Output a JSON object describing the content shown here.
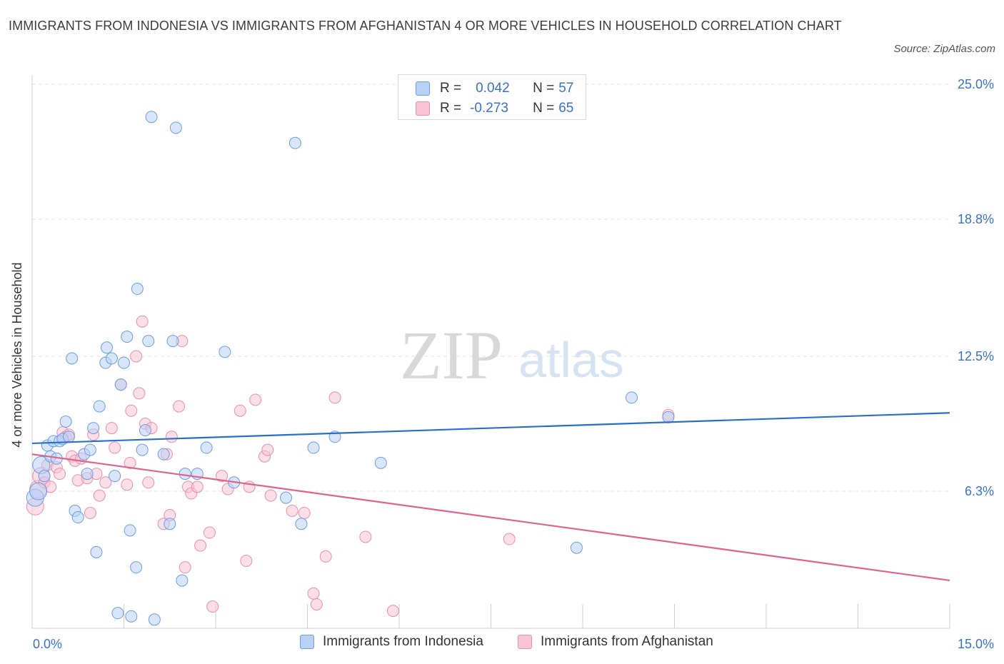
{
  "title": "IMMIGRANTS FROM INDONESIA VS IMMIGRANTS FROM AFGHANISTAN 4 OR MORE VEHICLES IN HOUSEHOLD CORRELATION CHART",
  "source": "Source: ZipAtlas.com",
  "watermark": {
    "zip": "ZIP",
    "atlas": "atlas"
  },
  "legend": {
    "r_label": "R =",
    "n_label": "N =",
    "series1": {
      "r": "0.042",
      "n": "57"
    },
    "series2": {
      "r": "-0.273",
      "n": "65"
    }
  },
  "colors": {
    "indonesia_fill": "#b9d1f5",
    "indonesia_stroke": "#6d9de0",
    "indonesia_line": "#2a6fca",
    "afghanistan_fill": "#f8c4d6",
    "afghanistan_stroke": "#e98eac",
    "afghanistan_line": "#e0628f",
    "axis_text": "#3a72c9"
  },
  "chart_data": {
    "type": "scatter",
    "title": "IMMIGRANTS FROM INDONESIA VS IMMIGRANTS FROM AFGHANISTAN 4 OR MORE VEHICLES IN HOUSEHOLD CORRELATION CHART",
    "xlabel": "",
    "ylabel": "4 or more Vehicles in Household",
    "xlim": [
      0,
      15
    ],
    "ylim": [
      0,
      25
    ],
    "x_tick_labels": [
      "0.0%",
      "15.0%"
    ],
    "y_ticks": [
      6.3,
      12.5,
      18.8,
      25.0
    ],
    "y_tick_labels": [
      "6.3%",
      "12.5%",
      "18.8%",
      "25.0%"
    ],
    "grid": true,
    "legend_position": "top-center",
    "series": [
      {
        "name": "Immigrants from Indonesia",
        "r": 0.042,
        "n": 57,
        "trend": [
          [
            0,
            8.5
          ],
          [
            15,
            9.9
          ]
        ],
        "points": [
          [
            0.05,
            6.0
          ],
          [
            0.1,
            6.3
          ],
          [
            0.15,
            7.5
          ],
          [
            0.2,
            7.0
          ],
          [
            0.25,
            8.4
          ],
          [
            0.3,
            7.9
          ],
          [
            0.35,
            8.6
          ],
          [
            0.4,
            7.8
          ],
          [
            0.45,
            8.6
          ],
          [
            0.5,
            8.7
          ],
          [
            0.55,
            9.5
          ],
          [
            0.6,
            8.8
          ],
          [
            0.65,
            12.4
          ],
          [
            0.7,
            5.4
          ],
          [
            0.75,
            5.1
          ],
          [
            0.85,
            8.0
          ],
          [
            0.9,
            7.1
          ],
          [
            0.95,
            8.2
          ],
          [
            1.0,
            9.2
          ],
          [
            1.05,
            3.5
          ],
          [
            1.1,
            10.2
          ],
          [
            1.2,
            12.2
          ],
          [
            1.22,
            12.9
          ],
          [
            1.3,
            12.4
          ],
          [
            1.35,
            7.0
          ],
          [
            1.4,
            0.7
          ],
          [
            1.45,
            11.2
          ],
          [
            1.5,
            12.2
          ],
          [
            1.55,
            13.4
          ],
          [
            1.6,
            4.5
          ],
          [
            1.62,
            0.55
          ],
          [
            1.7,
            2.8
          ],
          [
            1.72,
            15.6
          ],
          [
            1.8,
            8.2
          ],
          [
            1.85,
            9.1
          ],
          [
            1.9,
            13.2
          ],
          [
            1.95,
            23.5
          ],
          [
            2.0,
            0.4
          ],
          [
            2.15,
            8.0
          ],
          [
            2.25,
            4.8
          ],
          [
            2.3,
            13.2
          ],
          [
            2.35,
            23.0
          ],
          [
            2.45,
            2.2
          ],
          [
            2.5,
            7.1
          ],
          [
            2.7,
            7.1
          ],
          [
            2.85,
            8.3
          ],
          [
            3.15,
            12.7
          ],
          [
            3.3,
            6.7
          ],
          [
            4.15,
            6.0
          ],
          [
            4.3,
            22.3
          ],
          [
            4.4,
            4.8
          ],
          [
            4.6,
            8.3
          ],
          [
            4.95,
            8.8
          ],
          [
            5.7,
            7.6
          ],
          [
            8.9,
            3.7
          ],
          [
            9.8,
            10.6
          ],
          [
            10.4,
            9.7
          ]
        ]
      },
      {
        "name": "Immigrants from Afghanistan",
        "r": -0.273,
        "n": 65,
        "trend": [
          [
            0,
            8.0
          ],
          [
            15,
            2.2
          ]
        ],
        "points": [
          [
            0.05,
            5.6
          ],
          [
            0.1,
            6.4
          ],
          [
            0.15,
            7.0
          ],
          [
            0.2,
            6.7
          ],
          [
            0.25,
            7.5
          ],
          [
            0.3,
            6.5
          ],
          [
            0.4,
            7.4
          ],
          [
            0.45,
            7.1
          ],
          [
            0.5,
            9.0
          ],
          [
            0.55,
            8.8
          ],
          [
            0.6,
            8.9
          ],
          [
            0.65,
            7.9
          ],
          [
            0.7,
            7.7
          ],
          [
            0.75,
            6.8
          ],
          [
            0.8,
            7.8
          ],
          [
            0.9,
            6.9
          ],
          [
            0.95,
            5.3
          ],
          [
            1.0,
            8.9
          ],
          [
            1.05,
            7.1
          ],
          [
            1.1,
            6.1
          ],
          [
            1.2,
            6.7
          ],
          [
            1.3,
            9.2
          ],
          [
            1.35,
            8.3
          ],
          [
            1.45,
            11.2
          ],
          [
            1.55,
            6.6
          ],
          [
            1.6,
            7.6
          ],
          [
            1.62,
            10.0
          ],
          [
            1.7,
            12.5
          ],
          [
            1.75,
            10.8
          ],
          [
            1.8,
            14.1
          ],
          [
            1.85,
            9.4
          ],
          [
            1.9,
            6.7
          ],
          [
            1.95,
            9.2
          ],
          [
            2.15,
            4.8
          ],
          [
            2.2,
            8.0
          ],
          [
            2.25,
            5.2
          ],
          [
            2.28,
            8.8
          ],
          [
            2.4,
            10.2
          ],
          [
            2.45,
            13.2
          ],
          [
            2.5,
            2.8
          ],
          [
            2.55,
            6.5
          ],
          [
            2.6,
            6.2
          ],
          [
            2.7,
            6.5
          ],
          [
            2.75,
            3.8
          ],
          [
            2.9,
            4.4
          ],
          [
            2.95,
            1.0
          ],
          [
            3.1,
            7.0
          ],
          [
            3.2,
            6.4
          ],
          [
            3.4,
            10.0
          ],
          [
            3.5,
            3.1
          ],
          [
            3.55,
            6.5
          ],
          [
            3.65,
            10.5
          ],
          [
            3.8,
            7.9
          ],
          [
            3.85,
            8.2
          ],
          [
            3.9,
            6.1
          ],
          [
            4.25,
            5.4
          ],
          [
            4.45,
            5.3
          ],
          [
            4.6,
            1.6
          ],
          [
            4.65,
            1.1
          ],
          [
            4.8,
            3.3
          ],
          [
            4.95,
            10.6
          ],
          [
            5.45,
            4.2
          ],
          [
            5.9,
            0.8
          ],
          [
            7.8,
            4.1
          ],
          [
            10.4,
            9.8
          ]
        ]
      }
    ]
  },
  "bottom_legend": {
    "item1": "Immigrants from Indonesia",
    "item2": "Immigrants from Afghanistan"
  }
}
